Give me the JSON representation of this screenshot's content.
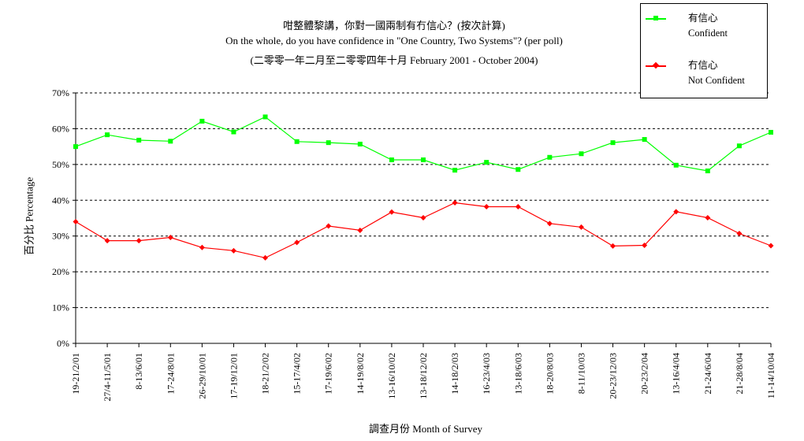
{
  "chart_data": {
    "type": "line",
    "title": "咁整體黎講，你對一國兩制有冇信心？(按次計算)",
    "subtitle": "On the whole, do you have confidence in \"One Country, Two Systems\"? (per poll)",
    "subtitle2": "(二零零一年二月至二零零四年十月 February 2001 - October 2004)",
    "ylabel": "百分比 Percentage",
    "xlabel": "調查月份 Month of Survey",
    "ylim": [
      0,
      70
    ],
    "yticks": [
      "0%",
      "10%",
      "20%",
      "30%",
      "40%",
      "50%",
      "60%",
      "70%"
    ],
    "grid": true,
    "legend_position": "top-right",
    "categories": [
      "19-21/2/01",
      "27/4-11/5/01",
      "8-13/6/01",
      "17-24/8/01",
      "26-29/10/01",
      "17-19/12/01",
      "18-21/2/02",
      "15-17/4/02",
      "17-19/6/02",
      "14-19/8/02",
      "13-16/10/02",
      "13-18/12/02",
      "14-18/2/03",
      "16-23/4/03",
      "13-18/6/03",
      "18-20/8/03",
      "8-11/10/03",
      "20-23/12/03",
      "20-23/2/04",
      "13-16/4/04",
      "21-24/6/04",
      "21-28/8/04",
      "11-14/10/04"
    ],
    "x_positions": [
      0,
      1,
      2,
      3,
      4,
      5,
      6,
      7,
      8,
      9,
      10,
      11,
      12,
      13,
      14,
      15,
      16,
      17,
      18,
      19,
      20,
      21,
      22
    ],
    "series": [
      {
        "name_zh": "有信心",
        "name": "Confident",
        "color": "#00ff00",
        "values": [
          55.0,
          58.3,
          56.8,
          56.5,
          62.1,
          59.1,
          63.3,
          56.4,
          56.1,
          55.7,
          51.3,
          51.3,
          48.4,
          50.6,
          48.6,
          52.0,
          53.0,
          56.1,
          57.0,
          49.8,
          48.2,
          55.2,
          59.0
        ]
      },
      {
        "name_zh": "冇信心",
        "name": "Not Confident",
        "color": "#ff0000",
        "values": [
          34.0,
          28.7,
          28.7,
          29.6,
          26.8,
          25.9,
          23.9,
          28.2,
          32.8,
          31.6,
          36.7,
          35.1,
          39.3,
          38.2,
          38.2,
          33.5,
          32.5,
          27.2,
          27.4,
          36.8,
          35.1,
          30.7,
          27.3
        ]
      }
    ]
  }
}
